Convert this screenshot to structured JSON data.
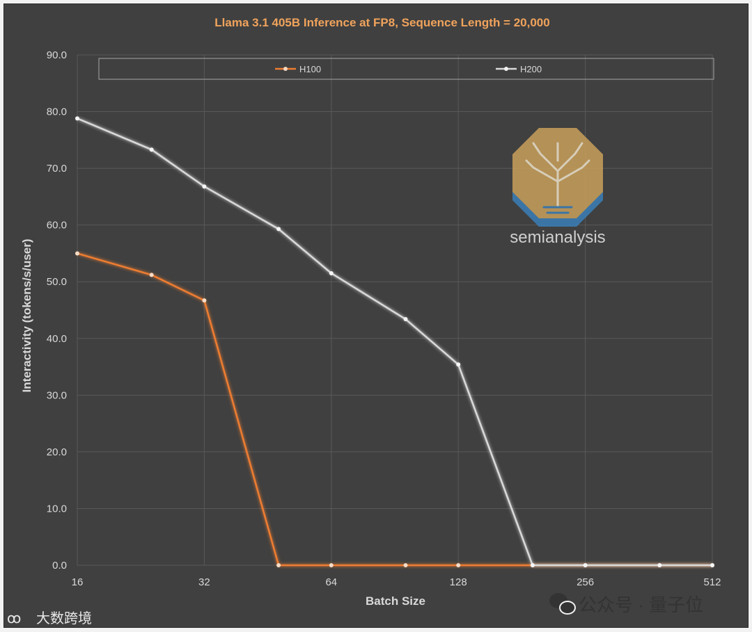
{
  "chart_data": {
    "type": "line",
    "title": "Llama 3.1 405B Inference at FP8, Sequence Length = 20,000",
    "xlabel": "Batch Size",
    "ylabel": "Interactivity (tokens/s/user)",
    "x_scale": "log2",
    "x_ticks": [
      "16",
      "32",
      "64",
      "128",
      "256",
      "512"
    ],
    "x": [
      16,
      24,
      32,
      48,
      64,
      96,
      128,
      192,
      256,
      384,
      512
    ],
    "ylim": [
      0,
      90
    ],
    "y_ticks": [
      "0.0",
      "10.0",
      "20.0",
      "30.0",
      "40.0",
      "50.0",
      "60.0",
      "70.0",
      "80.0",
      "90.0"
    ],
    "grid": true,
    "legend_position": "top",
    "series": [
      {
        "name": "H100",
        "color": "#ed7d31",
        "values": [
          55.0,
          51.2,
          46.7,
          0,
          0,
          0,
          0,
          0,
          0,
          0,
          0
        ]
      },
      {
        "name": "H200",
        "color": "#d9d9d9",
        "values": [
          78.8,
          73.3,
          66.8,
          59.3,
          51.5,
          43.4,
          35.4,
          0,
          0,
          0,
          0
        ]
      }
    ]
  },
  "watermarks": {
    "logo_text": "semianalysis",
    "wechat": "公众号 · 量子位",
    "corner": "大数跨境"
  }
}
